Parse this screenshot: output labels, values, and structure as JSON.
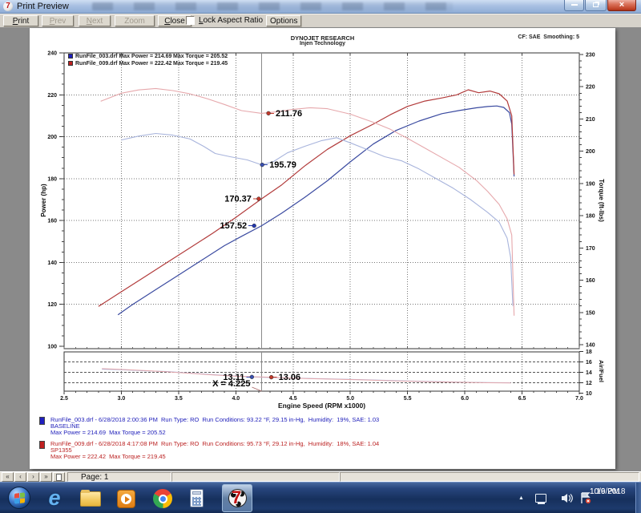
{
  "window": {
    "title": "Print Preview"
  },
  "toolbar": {
    "print": "Print",
    "prev": "Prev",
    "next": "Next",
    "zoom_out": "Zoom Out",
    "close": "Close",
    "lock_aspect": "Lock Aspect Ratio",
    "lock_aspect_checked": false,
    "options": "Options"
  },
  "chart_data": {
    "type": "line",
    "header": {
      "line1": "DYNOJET RESEARCH",
      "line2": "Injen Technology",
      "smoothing": "CF: SAE  Smoothing: 5"
    },
    "x_axis": {
      "label": "Engine Speed (RPM x1000)",
      "min": 2.5,
      "max": 7.0,
      "ticks": [
        "2.5",
        "3.0",
        "3.5",
        "4.0",
        "4.5",
        "5.0",
        "5.5",
        "6.0",
        "6.5",
        "7.0"
      ],
      "grid": [
        3.0,
        3.5,
        4.0,
        4.5,
        5.0,
        5.5,
        6.0,
        6.5
      ]
    },
    "y_left": {
      "label": "Power (hp)",
      "min": 100,
      "max": 240,
      "ticks": [
        240,
        220,
        200,
        180,
        160,
        140,
        120,
        100
      ],
      "grid": [
        220,
        200,
        180,
        160,
        140,
        120
      ]
    },
    "y_right": {
      "label": "Torque (ft-lbs)",
      "min": 140,
      "max": 230,
      "ticks": [
        230,
        220,
        210,
        200,
        190,
        180,
        170,
        160,
        150,
        140
      ]
    },
    "y_af": {
      "label": "Air/Fuel",
      "min": 10,
      "max": 18,
      "ticks": [
        18,
        16,
        14,
        12,
        10
      ],
      "grid": [
        16,
        14,
        12
      ]
    },
    "cursor": {
      "x": 4.225,
      "label": "X = 4.225"
    },
    "legend": [
      {
        "color": "#2020c0",
        "text_left": "RunFile_003.drf Max Power = 214.69",
        "text_right": "Max Torque = 205.52"
      },
      {
        "color": "#c02020",
        "text_left": "RunFile_009.drf Max Power = 222.42",
        "text_right": "Max Torque = 219.45"
      }
    ],
    "series": [
      {
        "name": "runfile-003-power",
        "axis": "power",
        "color": "#3a4aa0",
        "width": 1.2,
        "points": [
          [
            2.97,
            115
          ],
          [
            3.1,
            120
          ],
          [
            3.3,
            127
          ],
          [
            3.5,
            134
          ],
          [
            3.7,
            141
          ],
          [
            3.9,
            148
          ],
          [
            4.05,
            152.5
          ],
          [
            4.225,
            157.52
          ],
          [
            4.4,
            163.5
          ],
          [
            4.6,
            171
          ],
          [
            4.8,
            179
          ],
          [
            5.0,
            188
          ],
          [
            5.2,
            196.5
          ],
          [
            5.4,
            203
          ],
          [
            5.6,
            207.5
          ],
          [
            5.8,
            211
          ],
          [
            5.95,
            212.5
          ],
          [
            6.1,
            213.8
          ],
          [
            6.2,
            214.4
          ],
          [
            6.28,
            214.69
          ],
          [
            6.34,
            214
          ],
          [
            6.39,
            211.5
          ],
          [
            6.41,
            206
          ],
          [
            6.43,
            181
          ]
        ]
      },
      {
        "name": "runfile-009-power",
        "axis": "power",
        "color": "#b23b3b",
        "width": 1.2,
        "points": [
          [
            2.8,
            119
          ],
          [
            3.0,
            126
          ],
          [
            3.2,
            133
          ],
          [
            3.4,
            140
          ],
          [
            3.6,
            147
          ],
          [
            3.8,
            154
          ],
          [
            4.0,
            161.5
          ],
          [
            4.225,
            170.37
          ],
          [
            4.4,
            177
          ],
          [
            4.6,
            186
          ],
          [
            4.8,
            194
          ],
          [
            5.0,
            200.5
          ],
          [
            5.2,
            206
          ],
          [
            5.35,
            210.5
          ],
          [
            5.5,
            214.5
          ],
          [
            5.65,
            217
          ],
          [
            5.8,
            218.5
          ],
          [
            5.93,
            220
          ],
          [
            6.03,
            222.42
          ],
          [
            6.12,
            221
          ],
          [
            6.22,
            221.8
          ],
          [
            6.3,
            220.5
          ],
          [
            6.37,
            217
          ],
          [
            6.41,
            210
          ],
          [
            6.43,
            182
          ]
        ]
      },
      {
        "name": "runfile-003-torque",
        "axis": "torque",
        "color": "#a8b4dc",
        "width": 1.1,
        "points": [
          [
            3.0,
            203.5
          ],
          [
            3.15,
            204.7
          ],
          [
            3.3,
            205.52
          ],
          [
            3.45,
            205
          ],
          [
            3.6,
            203.8
          ],
          [
            3.72,
            201.5
          ],
          [
            3.82,
            199.3
          ],
          [
            3.95,
            198.3
          ],
          [
            4.1,
            197.3
          ],
          [
            4.225,
            195.79
          ],
          [
            4.33,
            196.8
          ],
          [
            4.45,
            199.5
          ],
          [
            4.6,
            201.5
          ],
          [
            4.75,
            203.3
          ],
          [
            4.88,
            204.2
          ],
          [
            5.0,
            202.6
          ],
          [
            5.15,
            200.5
          ],
          [
            5.3,
            198.3
          ],
          [
            5.45,
            197
          ],
          [
            5.6,
            194.5
          ],
          [
            5.75,
            191.5
          ],
          [
            5.9,
            188.5
          ],
          [
            6.05,
            185
          ],
          [
            6.2,
            181
          ],
          [
            6.3,
            178
          ],
          [
            6.37,
            173
          ],
          [
            6.4,
            167
          ],
          [
            6.42,
            152
          ]
        ]
      },
      {
        "name": "runfile-009-torque",
        "axis": "torque",
        "color": "#e6a8ac",
        "width": 1.1,
        "points": [
          [
            2.82,
            215.5
          ],
          [
            3.0,
            218
          ],
          [
            3.15,
            219
          ],
          [
            3.3,
            219.45
          ],
          [
            3.45,
            218.8
          ],
          [
            3.6,
            217.8
          ],
          [
            3.75,
            216.3
          ],
          [
            3.9,
            214.5
          ],
          [
            4.05,
            212.6
          ],
          [
            4.225,
            211.76
          ],
          [
            4.35,
            212.2
          ],
          [
            4.5,
            213
          ],
          [
            4.65,
            213.5
          ],
          [
            4.8,
            213.2
          ],
          [
            5.0,
            211.5
          ],
          [
            5.2,
            209
          ],
          [
            5.35,
            206.8
          ],
          [
            5.5,
            204
          ],
          [
            5.65,
            201
          ],
          [
            5.8,
            198
          ],
          [
            5.95,
            195
          ],
          [
            6.1,
            191
          ],
          [
            6.2,
            187.5
          ],
          [
            6.3,
            183.5
          ],
          [
            6.37,
            179
          ],
          [
            6.41,
            174
          ],
          [
            6.43,
            149
          ]
        ]
      },
      {
        "name": "runfile-003-airfuel",
        "axis": "af",
        "color": "#a8b4dc",
        "width": 1,
        "points": [
          [
            2.83,
            14.6
          ],
          [
            3.0,
            14.5
          ],
          [
            3.2,
            14.3
          ],
          [
            3.4,
            14.15
          ],
          [
            3.6,
            13.85
          ],
          [
            3.8,
            13.55
          ],
          [
            4.0,
            13.3
          ],
          [
            4.14,
            13.11
          ],
          [
            4.3,
            13.0
          ],
          [
            4.5,
            12.9
          ],
          [
            4.8,
            12.75
          ],
          [
            5.1,
            12.6
          ],
          [
            5.4,
            12.4
          ],
          [
            5.7,
            12.25
          ],
          [
            6.0,
            12.1
          ],
          [
            6.2,
            12.05
          ],
          [
            6.4,
            12.0
          ]
        ]
      },
      {
        "name": "runfile-009-airfuel",
        "axis": "af",
        "color": "#e6a8ac",
        "width": 1,
        "points": [
          [
            2.83,
            14.7
          ],
          [
            3.0,
            14.55
          ],
          [
            3.2,
            14.35
          ],
          [
            3.4,
            14.1
          ],
          [
            3.6,
            13.8
          ],
          [
            3.8,
            13.5
          ],
          [
            4.0,
            13.25
          ],
          [
            4.31,
            13.06
          ],
          [
            4.5,
            12.88
          ],
          [
            4.8,
            12.7
          ],
          [
            5.1,
            12.55
          ],
          [
            5.4,
            12.35
          ],
          [
            5.7,
            12.2
          ],
          [
            6.0,
            12.08
          ],
          [
            6.2,
            12.0
          ],
          [
            6.4,
            11.95
          ]
        ]
      }
    ],
    "annotations": [
      {
        "text": "211.76",
        "x": 4.285,
        "value": 211.76,
        "axis": "torque",
        "side": "right",
        "color": "#c0392b"
      },
      {
        "text": "195.79",
        "x": 4.23,
        "value": 195.79,
        "axis": "torque",
        "side": "right",
        "color": "#3a50b0"
      },
      {
        "text": "170.37",
        "x": 4.2,
        "value": 170.37,
        "axis": "power",
        "side": "left",
        "color": "#c0392b"
      },
      {
        "text": "157.52",
        "x": 4.16,
        "value": 157.52,
        "axis": "power",
        "side": "left",
        "color": "#2438b0"
      },
      {
        "text": "13.11",
        "x": 4.14,
        "value": 13.11,
        "axis": "af",
        "side": "left",
        "color": "#3a50b0"
      },
      {
        "text": "13.06",
        "x": 4.31,
        "value": 13.06,
        "axis": "af",
        "side": "right",
        "color": "#c0392b"
      }
    ]
  },
  "footer_runs": [
    {
      "color": "#2222bb",
      "chip": "#2020c0",
      "lines": [
        "RunFile_003.drf - 6/28/2018 2:00:36 PM  Run Type: RO  Run Conditions: 93.22 °F, 29.15 in-Hg,  Humidity:  19%, SAE: 1.03",
        "BASELINE",
        "Max Power = 214.69  Max Torque = 205.52"
      ]
    },
    {
      "color": "#bb2222",
      "chip": "#c02020",
      "lines": [
        "RunFile_009.drf - 6/28/2018 4:17:08 PM  Run Type: RO  Run Conditions: 95.73 °F, 29.12 in-Hg,  Humidity:  18%, SAE: 1.04",
        "SP1355",
        "Max Power = 222.42  Max Torque = 219.45"
      ]
    }
  ],
  "statusbar": {
    "nav": [
      "«",
      "‹",
      "›",
      "»"
    ],
    "page_label": "Page: 1"
  },
  "taskbar": {
    "apps": [
      "start",
      "internet-explorer",
      "windows-explorer",
      "media-player",
      "chrome",
      "calculator",
      "dynojet-winpep"
    ],
    "active_app": "dynojet-winpep",
    "tray": [
      "hidden-icons",
      "network",
      "volume",
      "action-center"
    ],
    "clock": {
      "time": "1:16 PM",
      "date": "10/9/2018"
    }
  }
}
